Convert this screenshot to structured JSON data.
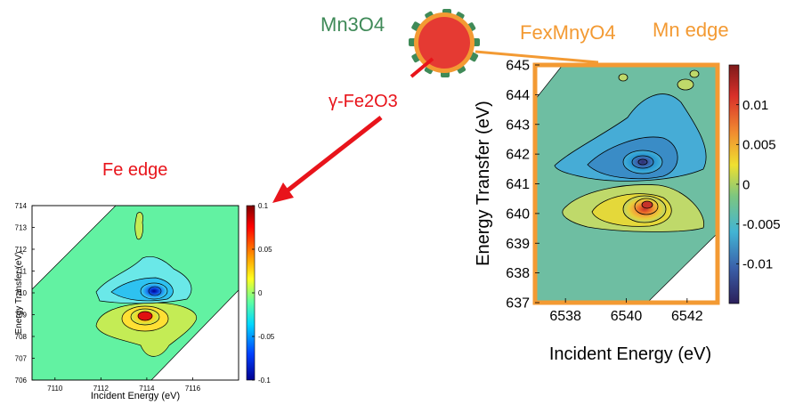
{
  "labels": {
    "shell_material": "Mn3O4",
    "interface_material": "FexMnyO4",
    "core_material": "γ-Fe2O3",
    "mn_edge_title": "Mn edge",
    "fe_edge_title": "Fe edge"
  },
  "colors": {
    "fe_label": "#e8141b",
    "mn_label": "#f39a33",
    "shell_green": "#3f8a58",
    "core_red": "#e53a33",
    "arrow_red": "#e8141b",
    "frame_orange": "#f39a33"
  },
  "chart_data": [
    {
      "type": "heatmap",
      "name": "Mn edge RIXS map",
      "xlabel": "Incident Energy (eV)",
      "ylabel": "Energy Transfer (eV)",
      "xlim": [
        6537,
        6543
      ],
      "ylim": [
        637,
        645
      ],
      "xticks": [
        6538,
        6540,
        6542
      ],
      "yticks": [
        637,
        638,
        639,
        640,
        641,
        642,
        643,
        644,
        645
      ],
      "colorbar": {
        "min": -0.015,
        "max": 0.015,
        "ticks": [
          0.01,
          0.005,
          0,
          -0.005,
          -0.01
        ]
      },
      "features": [
        {
          "kind": "min",
          "x": 6540.4,
          "y": 641.8,
          "value": -0.015
        },
        {
          "kind": "max",
          "x": 6540.5,
          "y": 640.5,
          "value": 0.012
        }
      ]
    },
    {
      "type": "heatmap",
      "name": "Fe edge RIXS map",
      "xlabel": "Incident Energy (eV)",
      "ylabel": "Energy Transfer (eV)",
      "xlim": [
        7109,
        7118
      ],
      "ylim": [
        706,
        714
      ],
      "xticks": [
        7110,
        7112,
        7114,
        7116
      ],
      "yticks": [
        706,
        707,
        708,
        709,
        710,
        711,
        712,
        713,
        714
      ],
      "colorbar": {
        "min": -0.1,
        "max": 0.1,
        "ticks": [
          0.1,
          0.05,
          0,
          -0.05,
          -0.1
        ]
      },
      "features": [
        {
          "kind": "min",
          "x": 7114.0,
          "y": 710.0,
          "value": -0.1
        },
        {
          "kind": "max",
          "x": 7113.4,
          "y": 708.8,
          "value": 0.1
        }
      ]
    }
  ]
}
